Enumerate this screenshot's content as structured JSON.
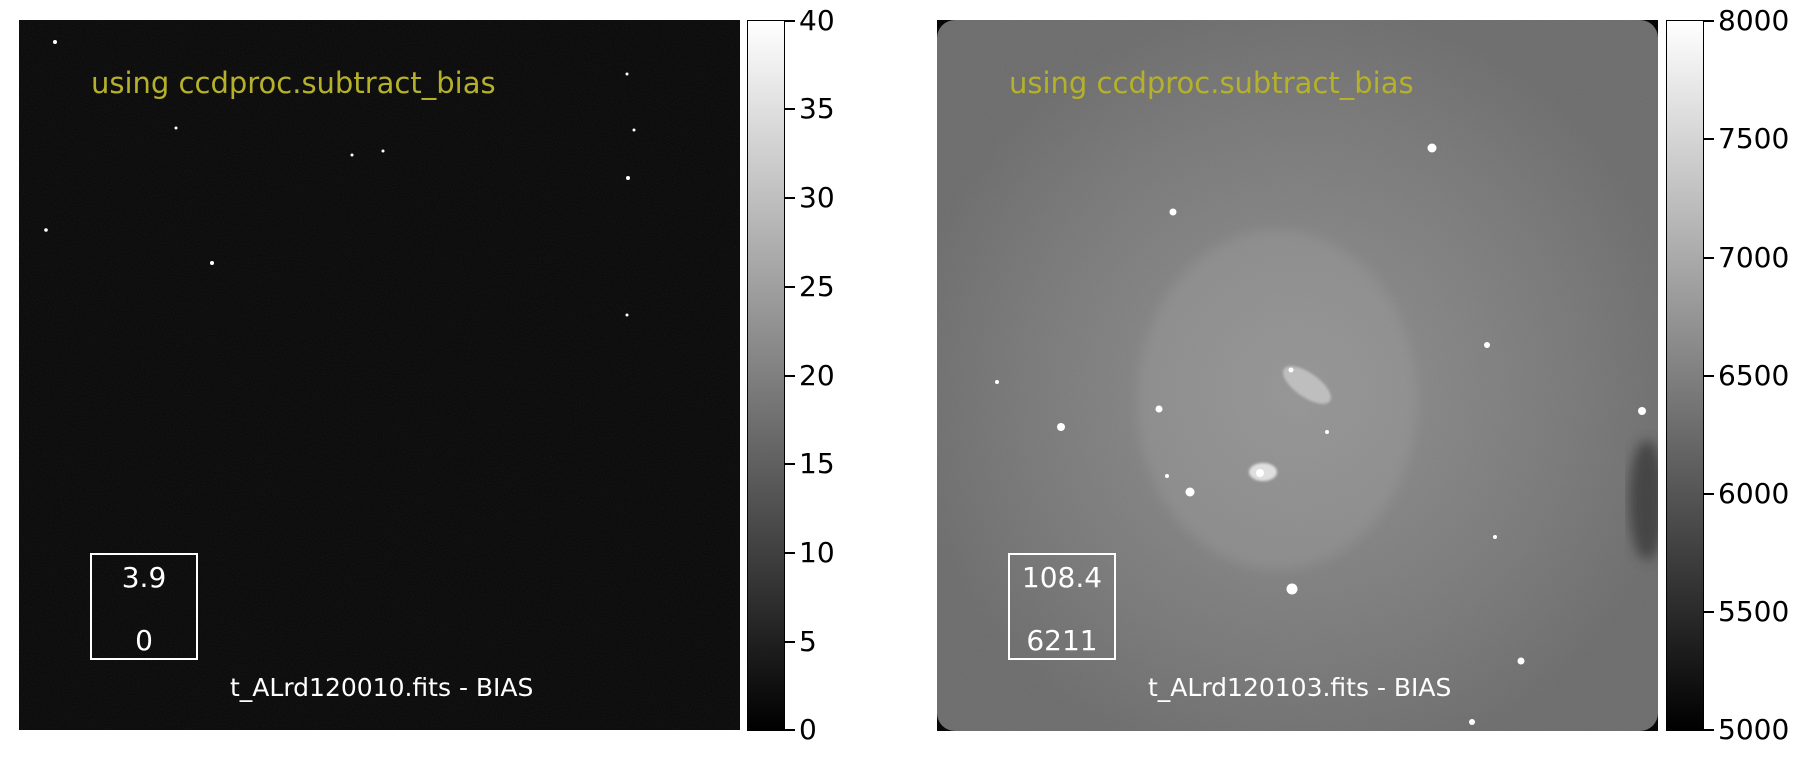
{
  "panels": [
    {
      "overlay_title": "using ccdproc.subtract_bias",
      "stat_upper": "3.9",
      "stat_lower": "0",
      "filename_label": "t_ALrd120010.fits - BIAS",
      "colorbar_ticks": [
        "0",
        "5",
        "10",
        "15",
        "20",
        "25",
        "30",
        "35",
        "40"
      ]
    },
    {
      "overlay_title": "using ccdproc.subtract_bias",
      "stat_upper": "108.4",
      "stat_lower": "6211",
      "filename_label": "t_ALrd120103.fits - BIAS",
      "colorbar_ticks": [
        "5000",
        "5500",
        "6000",
        "6500",
        "7000",
        "7500",
        "8000"
      ]
    }
  ],
  "colors": {
    "overlay_title": "#b5b12a",
    "box_and_label": "#ffffff"
  },
  "colormap": "grayscale"
}
